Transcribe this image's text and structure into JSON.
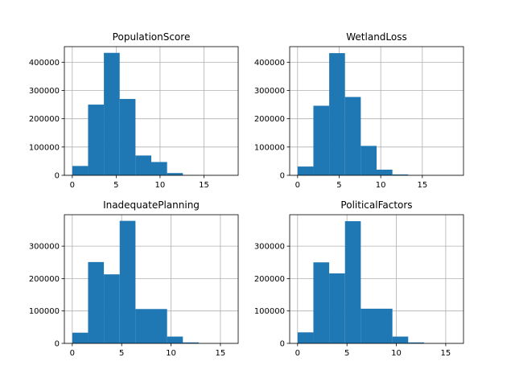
{
  "chart_data": [
    {
      "type": "bar",
      "title": "PopulationScore",
      "bins": [
        {
          "x0": 0.0,
          "x1": 1.8,
          "count": 33000
        },
        {
          "x0": 1.8,
          "x1": 3.6,
          "count": 250000
        },
        {
          "x0": 3.6,
          "x1": 5.4,
          "count": 433000
        },
        {
          "x0": 5.4,
          "x1": 7.2,
          "count": 270000
        },
        {
          "x0": 7.2,
          "x1": 9.0,
          "count": 70000
        },
        {
          "x0": 9.0,
          "x1": 10.8,
          "count": 47000
        },
        {
          "x0": 10.8,
          "x1": 12.6,
          "count": 8000
        },
        {
          "x0": 12.6,
          "x1": 14.4,
          "count": 800
        },
        {
          "x0": 14.4,
          "x1": 16.2,
          "count": 100
        },
        {
          "x0": 16.2,
          "x1": 18.0,
          "count": 20
        }
      ],
      "xlim": [
        -0.9,
        18.9
      ],
      "ylim": [
        0,
        455000
      ],
      "xticks": [
        0,
        5,
        10,
        15
      ],
      "yticks": [
        0,
        100000,
        200000,
        300000,
        400000
      ],
      "grid": true,
      "color": "#1f77b4"
    },
    {
      "type": "bar",
      "title": "WetlandLoss",
      "bins": [
        {
          "x0": 0.0,
          "x1": 1.9,
          "count": 31000
        },
        {
          "x0": 1.9,
          "x1": 3.8,
          "count": 246000
        },
        {
          "x0": 3.8,
          "x1": 5.7,
          "count": 432000
        },
        {
          "x0": 5.7,
          "x1": 7.6,
          "count": 277000
        },
        {
          "x0": 7.6,
          "x1": 9.5,
          "count": 104000
        },
        {
          "x0": 9.5,
          "x1": 11.4,
          "count": 20000
        },
        {
          "x0": 11.4,
          "x1": 13.3,
          "count": 3000
        },
        {
          "x0": 13.3,
          "x1": 15.2,
          "count": 300
        },
        {
          "x0": 15.2,
          "x1": 17.1,
          "count": 50
        },
        {
          "x0": 17.1,
          "x1": 19.0,
          "count": 10
        }
      ],
      "xlim": [
        -0.95,
        19.95
      ],
      "ylim": [
        0,
        455000
      ],
      "xticks": [
        0,
        5,
        10,
        15
      ],
      "yticks": [
        0,
        100000,
        200000,
        300000,
        400000
      ],
      "grid": true,
      "color": "#1f77b4"
    },
    {
      "type": "bar",
      "title": "InadequatePlanning",
      "bins": [
        {
          "x0": 0.0,
          "x1": 1.6,
          "count": 33000
        },
        {
          "x0": 1.6,
          "x1": 3.2,
          "count": 251000
        },
        {
          "x0": 3.2,
          "x1": 4.8,
          "count": 213000
        },
        {
          "x0": 4.8,
          "x1": 6.4,
          "count": 378000
        },
        {
          "x0": 6.4,
          "x1": 8.0,
          "count": 106000
        },
        {
          "x0": 8.0,
          "x1": 9.6,
          "count": 106000
        },
        {
          "x0": 9.6,
          "x1": 11.2,
          "count": 21000
        },
        {
          "x0": 11.2,
          "x1": 12.8,
          "count": 3000
        },
        {
          "x0": 12.8,
          "x1": 14.4,
          "count": 200
        },
        {
          "x0": 14.4,
          "x1": 16.0,
          "count": 40
        }
      ],
      "xlim": [
        -0.8,
        16.8
      ],
      "ylim": [
        0,
        397000
      ],
      "xticks": [
        0,
        5,
        10,
        15
      ],
      "yticks": [
        0,
        100000,
        200000,
        300000
      ],
      "grid": true,
      "color": "#1f77b4"
    },
    {
      "type": "bar",
      "title": "PoliticalFactors",
      "bins": [
        {
          "x0": 0.0,
          "x1": 1.6,
          "count": 34000
        },
        {
          "x0": 1.6,
          "x1": 3.2,
          "count": 250000
        },
        {
          "x0": 3.2,
          "x1": 4.8,
          "count": 216000
        },
        {
          "x0": 4.8,
          "x1": 6.4,
          "count": 377000
        },
        {
          "x0": 6.4,
          "x1": 8.0,
          "count": 107000
        },
        {
          "x0": 8.0,
          "x1": 9.6,
          "count": 107000
        },
        {
          "x0": 9.6,
          "x1": 11.2,
          "count": 21000
        },
        {
          "x0": 11.2,
          "x1": 12.8,
          "count": 3000
        },
        {
          "x0": 12.8,
          "x1": 14.4,
          "count": 200
        },
        {
          "x0": 14.4,
          "x1": 16.0,
          "count": 40
        }
      ],
      "xlim": [
        -0.8,
        16.8
      ],
      "ylim": [
        0,
        397000
      ],
      "xticks": [
        0,
        5,
        10,
        15
      ],
      "yticks": [
        0,
        100000,
        200000,
        300000
      ],
      "grid": true,
      "color": "#1f77b4"
    }
  ]
}
